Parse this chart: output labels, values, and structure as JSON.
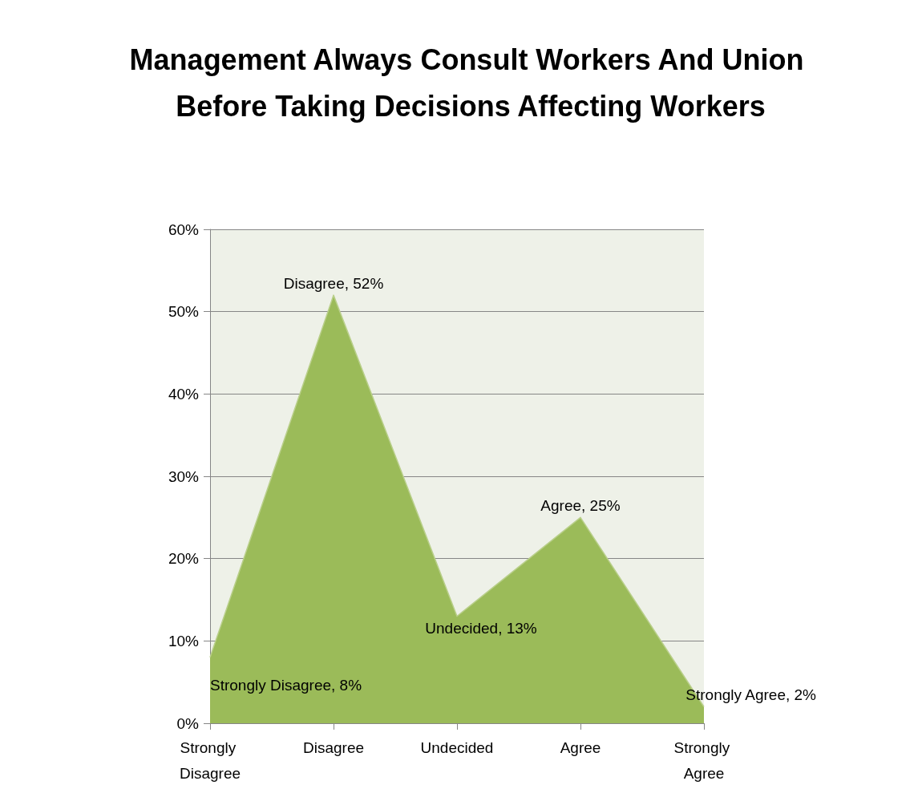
{
  "chart_data": {
    "type": "area",
    "title": "Management Always Consult Workers And Union Before Taking Decisions Affecting Workers",
    "categories": [
      "Strongly Disagree",
      "Disagree",
      "Undecided",
      "Agree",
      "Strongly Agree"
    ],
    "series": [
      {
        "color": "#9bbb59",
        "values": [
          8,
          52,
          13,
          25,
          2
        ],
        "value_labels": [
          "Strongly Disagree, 8%",
          "Disagree, 52%",
          "Undecided, 13%",
          "Agree, 25%",
          "Strongly Agree, 2%"
        ]
      }
    ],
    "ylim": [
      0,
      60
    ],
    "yticks": [
      {
        "value": 0,
        "label": "0%"
      },
      {
        "value": 10,
        "label": "10%"
      },
      {
        "value": 20,
        "label": "20%"
      },
      {
        "value": 30,
        "label": "30%"
      },
      {
        "value": 40,
        "label": "40%"
      },
      {
        "value": 50,
        "label": "50%"
      },
      {
        "value": 60,
        "label": "60%"
      }
    ],
    "grid": "y"
  }
}
